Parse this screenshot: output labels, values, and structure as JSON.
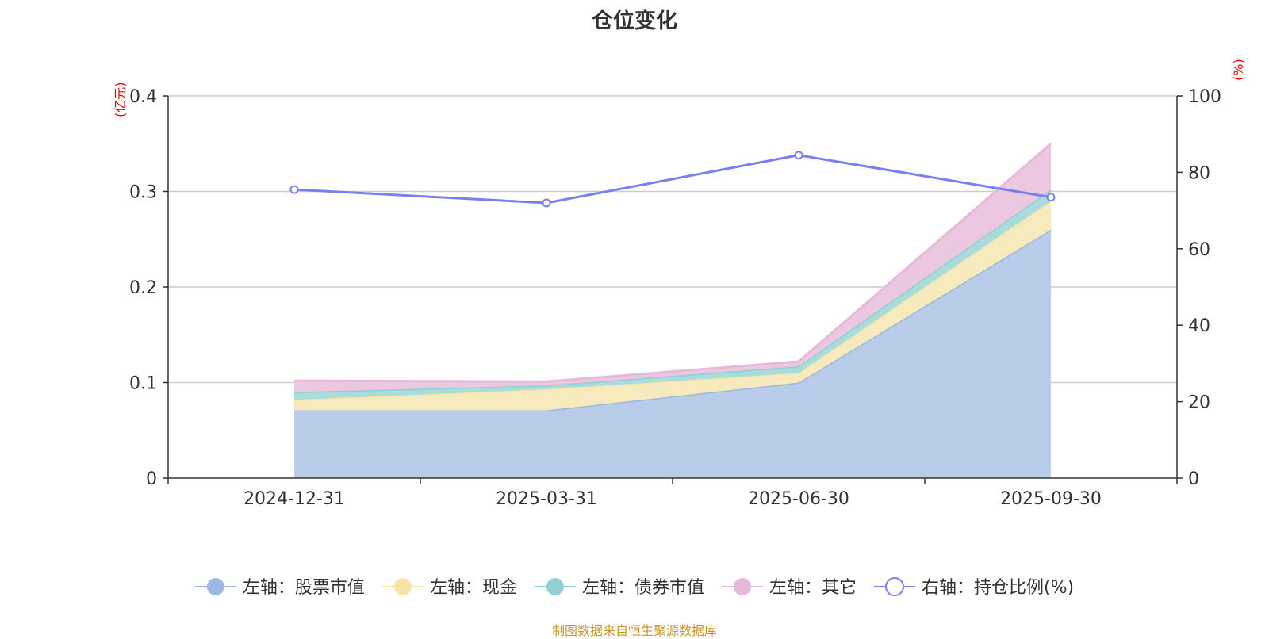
{
  "chart_data": {
    "type": "area",
    "title": "仓位变化",
    "left_axis_unit": "(亿元)",
    "right_axis_unit": "(%)",
    "categories": [
      "2024-12-31",
      "2025-03-31",
      "2025-06-30",
      "2025-09-30"
    ],
    "left_axis": {
      "ticks": [
        "0",
        "0.1",
        "0.2",
        "0.3",
        "0.4"
      ],
      "ylim": [
        0,
        0.4
      ]
    },
    "right_axis": {
      "ticks": [
        "0",
        "20",
        "40",
        "60",
        "80",
        "100"
      ],
      "ylim": [
        0,
        100
      ]
    },
    "stacked_series": [
      {
        "name": "左轴：股票市值",
        "color": "#9bb8e0",
        "fill": "#b9cdea",
        "values": [
          0.071,
          0.071,
          0.1,
          0.26
        ]
      },
      {
        "name": "左轴：现金",
        "color": "#f5e6a8",
        "fill": "#f7ebbd",
        "values": [
          0.011,
          0.022,
          0.01,
          0.03
        ]
      },
      {
        "name": "左轴：债券市值",
        "color": "#8fd0d3",
        "fill": "#a9dcdc",
        "values": [
          0.008,
          0.004,
          0.007,
          0.012
        ]
      },
      {
        "name": "左轴：其它",
        "color": "#e8b8da",
        "fill": "#ecc8e0",
        "values": [
          0.012,
          0.004,
          0.005,
          0.048
        ]
      }
    ],
    "line_series": {
      "name": "右轴：持仓比例(%)",
      "color": "#7a7ff0",
      "axis": "right",
      "values": [
        75.5,
        72,
        84.5,
        73.5
      ]
    },
    "legend_position": "bottom",
    "grid": true
  },
  "footer": {
    "source": "制图数据来自恒生聚源数据库"
  }
}
